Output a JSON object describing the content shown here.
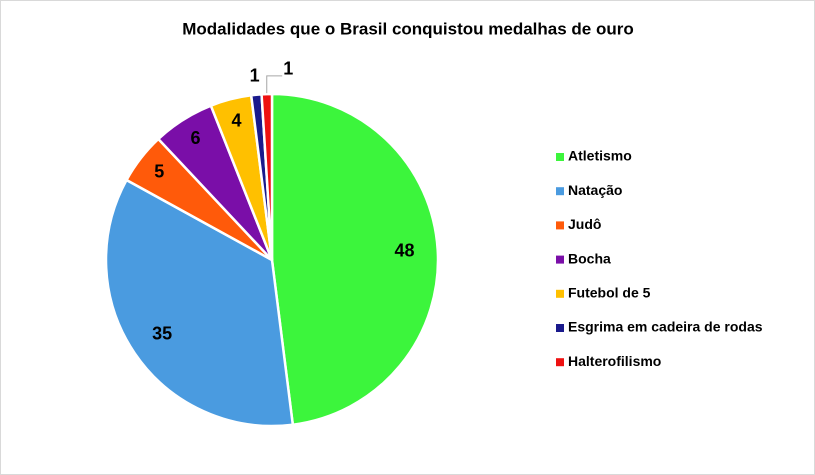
{
  "chart_data": {
    "type": "pie",
    "title": "Modalidades que o Brasil conquistou medalhas de ouro",
    "categories": [
      "Atletismo",
      "Natação",
      "Judô",
      "Bocha",
      "Futebol de 5",
      "Esgrima em cadeira de rodas",
      "Halterofilismo"
    ],
    "values": [
      48,
      35,
      5,
      6,
      4,
      1,
      1
    ],
    "colors": [
      "#3cf53c",
      "#4a9be0",
      "#ff5a0a",
      "#7a0ea8",
      "#ffc000",
      "#1a1a8c",
      "#ee1111"
    ],
    "legend": "right"
  }
}
